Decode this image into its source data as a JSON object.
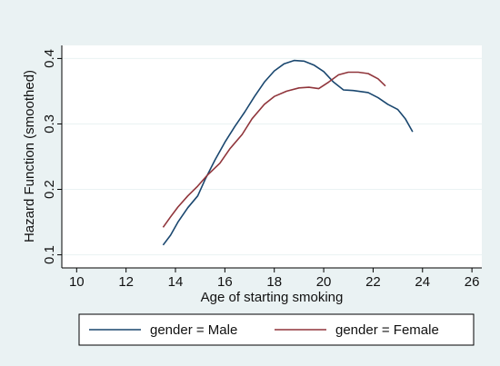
{
  "chart_data": {
    "type": "line",
    "title": "",
    "xlabel": "Age of starting smoking",
    "ylabel": "Hazard Function (smoothed)",
    "xlim": [
      9.4,
      26.4
    ],
    "ylim": [
      0.08,
      0.42
    ],
    "xticks": [
      10,
      12,
      14,
      16,
      18,
      20,
      22,
      24,
      26
    ],
    "yticks": [
      0.1,
      0.2,
      0.3,
      0.4
    ],
    "grid": "horizontal",
    "legend_position": "bottom",
    "series": [
      {
        "name": "gender = Male",
        "color": "#1a476f",
        "points": [
          [
            13.5,
            0.115
          ],
          [
            13.8,
            0.13
          ],
          [
            14.1,
            0.15
          ],
          [
            14.5,
            0.172
          ],
          [
            14.9,
            0.19
          ],
          [
            15.2,
            0.215
          ],
          [
            15.6,
            0.245
          ],
          [
            16.0,
            0.272
          ],
          [
            16.4,
            0.296
          ],
          [
            16.8,
            0.318
          ],
          [
            17.2,
            0.342
          ],
          [
            17.6,
            0.364
          ],
          [
            18.0,
            0.381
          ],
          [
            18.4,
            0.392
          ],
          [
            18.8,
            0.397
          ],
          [
            19.2,
            0.396
          ],
          [
            19.6,
            0.39
          ],
          [
            20.0,
            0.38
          ],
          [
            20.4,
            0.364
          ],
          [
            20.8,
            0.352
          ],
          [
            21.2,
            0.351
          ],
          [
            21.8,
            0.348
          ],
          [
            22.2,
            0.34
          ],
          [
            22.6,
            0.33
          ],
          [
            23.0,
            0.322
          ],
          [
            23.3,
            0.308
          ],
          [
            23.6,
            0.288
          ]
        ]
      },
      {
        "name": "gender = Female",
        "color": "#90353b",
        "points": [
          [
            13.5,
            0.142
          ],
          [
            13.8,
            0.158
          ],
          [
            14.1,
            0.173
          ],
          [
            14.5,
            0.19
          ],
          [
            14.9,
            0.205
          ],
          [
            15.3,
            0.222
          ],
          [
            15.8,
            0.24
          ],
          [
            16.2,
            0.262
          ],
          [
            16.7,
            0.284
          ],
          [
            17.1,
            0.308
          ],
          [
            17.6,
            0.33
          ],
          [
            18.0,
            0.342
          ],
          [
            18.5,
            0.35
          ],
          [
            19.0,
            0.355
          ],
          [
            19.4,
            0.356
          ],
          [
            19.8,
            0.354
          ],
          [
            20.2,
            0.364
          ],
          [
            20.6,
            0.375
          ],
          [
            21.0,
            0.379
          ],
          [
            21.4,
            0.379
          ],
          [
            21.8,
            0.377
          ],
          [
            22.2,
            0.369
          ],
          [
            22.5,
            0.358
          ]
        ]
      }
    ]
  }
}
